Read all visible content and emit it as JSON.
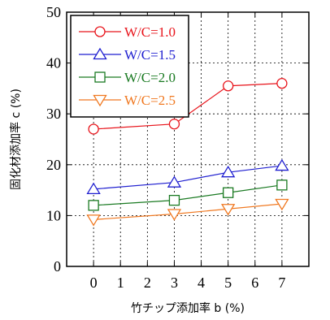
{
  "chart_data": {
    "type": "line",
    "title": "",
    "xlabel": "竹チップ添加率 b (%)",
    "ylabel": "固化材添加率 c (%)",
    "xlim": [
      -1,
      8
    ],
    "ylim": [
      0,
      50
    ],
    "x_ticks": [
      0,
      1,
      2,
      3,
      4,
      5,
      6,
      7
    ],
    "y_ticks": [
      0,
      10,
      20,
      30,
      40,
      50
    ],
    "grid": true,
    "legend_position": "top-left",
    "x": [
      0,
      3,
      5,
      7
    ],
    "series": [
      {
        "name": "W/C=1.0",
        "values": [
          27,
          28,
          35.5,
          36
        ],
        "color": "#e8141b",
        "marker": "circle"
      },
      {
        "name": "W/C=1.5",
        "values": [
          15.2,
          16.5,
          18.5,
          19.8
        ],
        "color": "#1f1fd0",
        "marker": "triangle-up"
      },
      {
        "name": "W/C=2.0",
        "values": [
          12,
          13,
          14.5,
          16
        ],
        "color": "#1a7a22",
        "marker": "square"
      },
      {
        "name": "W/C=2.5",
        "values": [
          9.2,
          10.3,
          11.3,
          12.3
        ],
        "color": "#f07820",
        "marker": "triangle-down"
      }
    ]
  }
}
